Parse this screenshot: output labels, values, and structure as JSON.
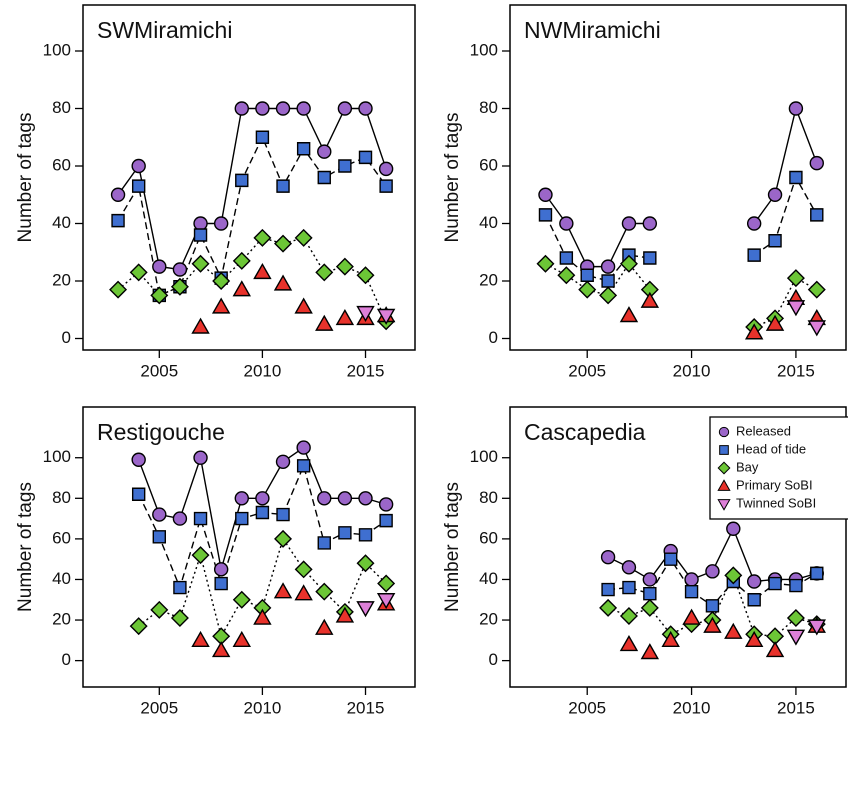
{
  "chart_data": [
    {
      "type": "line",
      "title": "SWMiramichi",
      "y_label": "Number of tags",
      "x": [
        2003,
        2004,
        2005,
        2006,
        2007,
        2008,
        2009,
        2010,
        2011,
        2012,
        2013,
        2014,
        2015,
        2016
      ],
      "xlim": [
        2001.3,
        2017.4
      ],
      "ylim": [
        -4,
        116
      ],
      "xticks": [
        2005,
        2010,
        2015
      ],
      "yticks": [
        0,
        20,
        40,
        60,
        80,
        100
      ],
      "series": [
        {
          "name": "Released",
          "color": "#9b66c9",
          "marker": "circle",
          "linestyle": "solid",
          "values": [
            50,
            60,
            25,
            24,
            40,
            40,
            80,
            80,
            80,
            80,
            65,
            80,
            80,
            59
          ]
        },
        {
          "name": "Head of tide",
          "color": "#3f6fd0",
          "marker": "square",
          "linestyle": "dashed",
          "values": [
            41,
            53,
            15,
            18,
            36,
            21,
            55,
            70,
            53,
            66,
            56,
            60,
            63,
            53
          ]
        },
        {
          "name": "Bay",
          "color": "#6cc636",
          "marker": "diamond",
          "linestyle": "dotted",
          "values": [
            17,
            23,
            15,
            18,
            26,
            20,
            27,
            35,
            33,
            35,
            23,
            25,
            22,
            6
          ]
        },
        {
          "name": "Primary SoBI",
          "color": "#e8322b",
          "marker": "triangle-up",
          "linestyle": "none",
          "values": [
            null,
            null,
            null,
            null,
            4,
            11,
            17,
            23,
            19,
            11,
            5,
            7,
            7,
            8
          ]
        },
        {
          "name": "Twinned SoBI",
          "color": "#dd7fd8",
          "marker": "triangle-down",
          "linestyle": "none",
          "values": [
            null,
            null,
            null,
            null,
            null,
            null,
            null,
            null,
            null,
            null,
            null,
            null,
            9,
            8
          ]
        }
      ]
    },
    {
      "type": "line",
      "title": "NWMiramichi",
      "y_label": "Number of tags",
      "x": [
        2003,
        2004,
        2005,
        2006,
        2007,
        2008,
        2009,
        2010,
        2011,
        2012,
        2013,
        2014,
        2015,
        2016
      ],
      "xlim": [
        2001.3,
        2017.4
      ],
      "ylim": [
        -4,
        116
      ],
      "xticks": [
        2005,
        2010,
        2015
      ],
      "yticks": [
        0,
        20,
        40,
        60,
        80,
        100
      ],
      "series": [
        {
          "name": "Released",
          "color": "#9b66c9",
          "marker": "circle",
          "linestyle": "solid",
          "values": [
            50,
            40,
            25,
            25,
            40,
            40,
            null,
            null,
            null,
            null,
            40,
            50,
            80,
            61
          ]
        },
        {
          "name": "Head of tide",
          "color": "#3f6fd0",
          "marker": "square",
          "linestyle": "dashed",
          "values": [
            43,
            28,
            22,
            20,
            29,
            28,
            null,
            null,
            null,
            null,
            29,
            34,
            56,
            43
          ]
        },
        {
          "name": "Bay",
          "color": "#6cc636",
          "marker": "diamond",
          "linestyle": "dotted",
          "values": [
            26,
            22,
            17,
            15,
            26,
            17,
            null,
            null,
            null,
            null,
            4,
            7,
            21,
            17
          ]
        },
        {
          "name": "Primary SoBI",
          "color": "#e8322b",
          "marker": "triangle-up",
          "linestyle": "none",
          "values": [
            null,
            null,
            null,
            null,
            8,
            13,
            null,
            null,
            null,
            null,
            2,
            5,
            14,
            7
          ]
        },
        {
          "name": "Twinned SoBI",
          "color": "#dd7fd8",
          "marker": "triangle-down",
          "linestyle": "none",
          "values": [
            null,
            null,
            null,
            null,
            null,
            null,
            null,
            null,
            null,
            null,
            null,
            null,
            11,
            4
          ]
        }
      ]
    },
    {
      "type": "line",
      "title": "Restigouche",
      "y_label": "Number of tags",
      "x": [
        2004,
        2005,
        2006,
        2007,
        2008,
        2009,
        2010,
        2011,
        2012,
        2013,
        2014,
        2015,
        2016
      ],
      "xlim": [
        2001.3,
        2017.4
      ],
      "ylim": [
        -13,
        125
      ],
      "xticks": [
        2005,
        2010,
        2015
      ],
      "yticks": [
        0,
        20,
        40,
        60,
        80,
        100
      ],
      "series": [
        {
          "name": "Released",
          "color": "#9b66c9",
          "marker": "circle",
          "linestyle": "solid",
          "values": [
            99,
            72,
            70,
            100,
            45,
            80,
            80,
            98,
            105,
            80,
            80,
            80,
            77
          ]
        },
        {
          "name": "Head of tide",
          "color": "#3f6fd0",
          "marker": "square",
          "linestyle": "dashed",
          "values": [
            82,
            61,
            36,
            70,
            38,
            70,
            73,
            72,
            96,
            58,
            63,
            62,
            69
          ]
        },
        {
          "name": "Bay",
          "color": "#6cc636",
          "marker": "diamond",
          "linestyle": "dotted",
          "values": [
            17,
            25,
            21,
            52,
            12,
            30,
            26,
            60,
            45,
            34,
            24,
            48,
            38
          ]
        },
        {
          "name": "Primary SoBI",
          "color": "#e8322b",
          "marker": "triangle-up",
          "linestyle": "none",
          "values": [
            null,
            null,
            null,
            10,
            5,
            10,
            21,
            34,
            33,
            16,
            22,
            null,
            28
          ]
        },
        {
          "name": "Twinned SoBI",
          "color": "#dd7fd8",
          "marker": "triangle-down",
          "linestyle": "none",
          "values": [
            null,
            null,
            null,
            null,
            null,
            null,
            null,
            null,
            null,
            null,
            null,
            26,
            30
          ]
        }
      ]
    },
    {
      "type": "line",
      "title": "Cascapedia",
      "y_label": "Number of tags",
      "legend": "upper right",
      "x": [
        2006,
        2007,
        2008,
        2009,
        2010,
        2011,
        2012,
        2013,
        2014,
        2015,
        2016
      ],
      "xlim": [
        2001.3,
        2017.4
      ],
      "ylim": [
        -13,
        125
      ],
      "xticks": [
        2005,
        2010,
        2015
      ],
      "yticks": [
        0,
        20,
        40,
        60,
        80,
        100
      ],
      "series": [
        {
          "name": "Released",
          "color": "#9b66c9",
          "marker": "circle",
          "linestyle": "solid",
          "values": [
            51,
            46,
            40,
            54,
            40,
            44,
            65,
            39,
            40,
            40,
            43
          ]
        },
        {
          "name": "Head of tide",
          "color": "#3f6fd0",
          "marker": "square",
          "linestyle": "dashed",
          "values": [
            35,
            36,
            33,
            50,
            34,
            27,
            39,
            30,
            38,
            37,
            43
          ]
        },
        {
          "name": "Bay",
          "color": "#6cc636",
          "marker": "diamond",
          "linestyle": "dotted",
          "values": [
            26,
            22,
            26,
            13,
            18,
            20,
            42,
            13,
            12,
            21,
            18
          ]
        },
        {
          "name": "Primary SoBI",
          "color": "#e8322b",
          "marker": "triangle-up",
          "linestyle": "none",
          "values": [
            null,
            8,
            4,
            10,
            21,
            17,
            14,
            10,
            5,
            null,
            17
          ]
        },
        {
          "name": "Twinned SoBI",
          "color": "#dd7fd8",
          "marker": "triangle-down",
          "linestyle": "none",
          "values": [
            null,
            null,
            null,
            null,
            null,
            null,
            null,
            null,
            null,
            12,
            17
          ]
        }
      ]
    }
  ]
}
